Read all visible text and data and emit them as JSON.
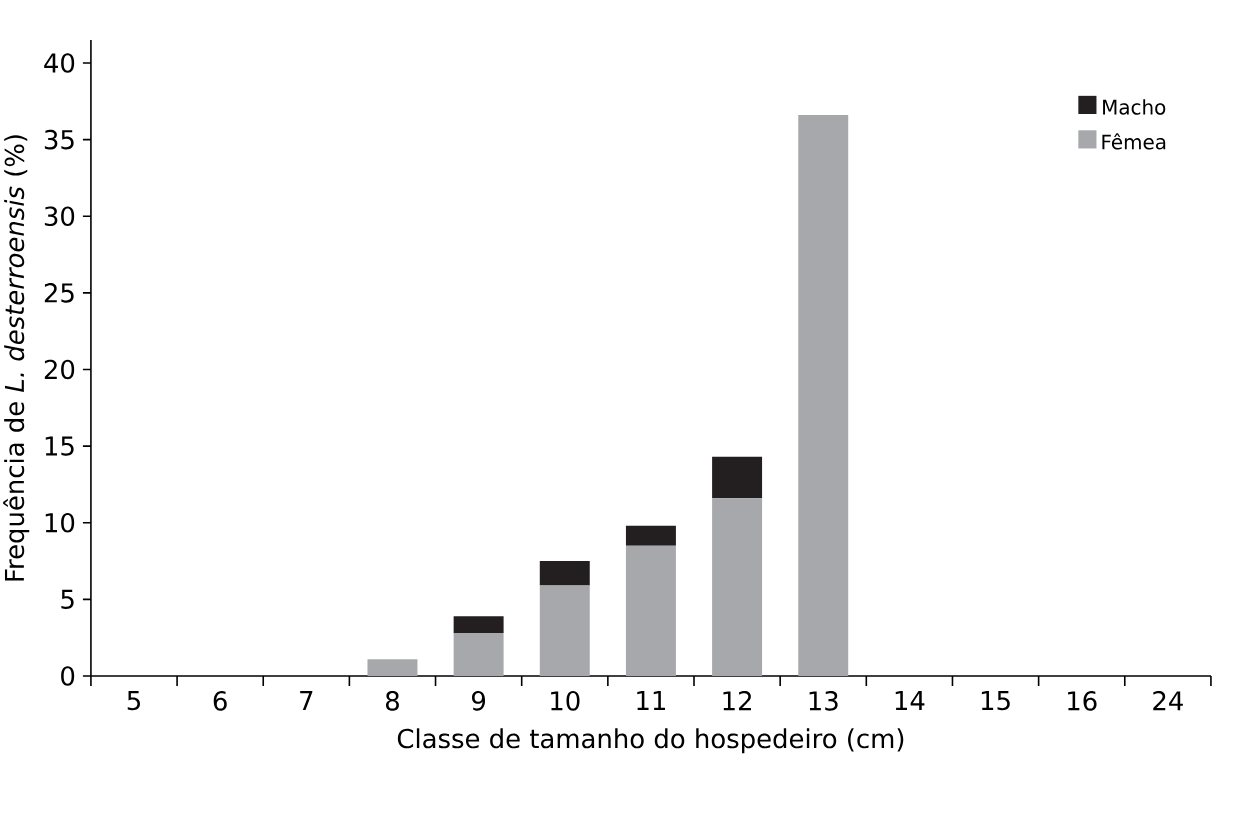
{
  "chart_data": {
    "type": "bar",
    "stacked": true,
    "xlabel": "Classe de tamanho do hospedeiro (cm)",
    "ylabel": "Frequência de *L. desterroensis* (%)",
    "categories": [
      "5",
      "6",
      "7",
      "8",
      "9",
      "10",
      "11",
      "12",
      "13",
      "14",
      "15",
      "16",
      "24"
    ],
    "series": [
      {
        "name": "Fêmea",
        "color": "#a7a8ab",
        "values": [
          0,
          0,
          0,
          1.1,
          2.8,
          5.9,
          8.5,
          11.6,
          36.6,
          0,
          0,
          0,
          0
        ]
      },
      {
        "name": "Macho",
        "color": "#231f20",
        "values": [
          0,
          0,
          0,
          0,
          1.1,
          1.6,
          1.3,
          2.7,
          0,
          0,
          0,
          0,
          0
        ]
      }
    ],
    "ylim": [
      0,
      41.5
    ],
    "yticks": [
      0,
      5,
      10,
      15,
      20,
      25,
      30,
      35,
      40
    ],
    "legend": "top right",
    "grid": false
  }
}
